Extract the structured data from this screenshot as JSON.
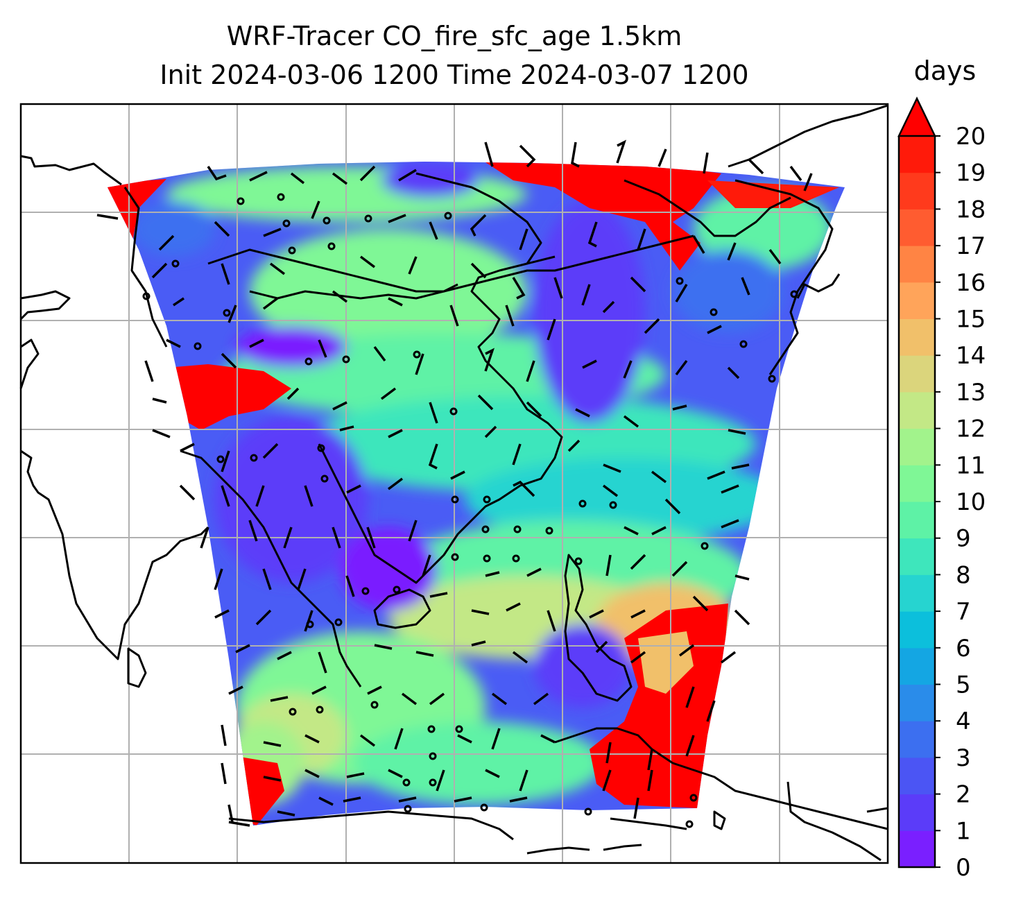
{
  "title_line1": "WRF-Tracer CO_fire_sfc_age 1.5km",
  "title_line2": "Init 2024-03-06 1200 Time 2024-03-07 1200",
  "colorbar": {
    "units": "days",
    "ticks": [
      "0",
      "1",
      "2",
      "3",
      "4",
      "5",
      "6",
      "7",
      "8",
      "9",
      "10",
      "11",
      "12",
      "13",
      "14",
      "15",
      "16",
      "17",
      "18",
      "19",
      "20"
    ],
    "extend": "max",
    "colors": [
      "#7a1fff",
      "#5b3cf9",
      "#4b55f4",
      "#3c6ff0",
      "#2a8cea",
      "#14a6e3",
      "#0cbfdc",
      "#26d4d0",
      "#3ee6bc",
      "#5ef2a6",
      "#7ff796",
      "#a2f38c",
      "#c3e886",
      "#dbd57c",
      "#f1c06a",
      "#ffa45a",
      "#ff8444",
      "#ff5c30",
      "#ff3a1c",
      "#ff1a0a",
      "#ff0000"
    ]
  },
  "chart_data": {
    "type": "heatmap",
    "variable": "CO_fire_sfc_age",
    "value_range": [
      0,
      20
    ],
    "grid": true,
    "gridline_lons": [
      80,
      90,
      100,
      110,
      120,
      130,
      140
    ],
    "gridline_lats": [
      -10,
      0,
      10,
      20,
      30,
      40,
      50
    ]
  }
}
